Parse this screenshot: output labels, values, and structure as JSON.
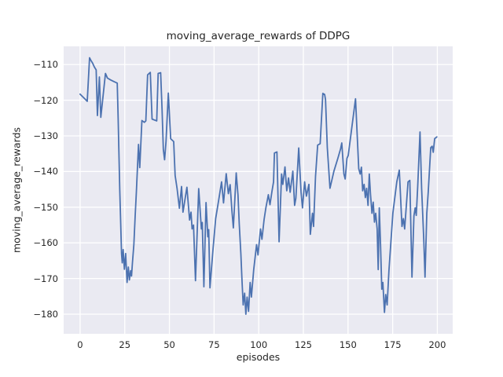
{
  "figure": {
    "title": "moving_average_rewards of DDPG"
  },
  "chart_data": {
    "type": "line",
    "title": "moving_average_rewards of DDPG",
    "xlabel": "episodes",
    "ylabel": "moving_average_rewards",
    "legend_position": "none",
    "grid": true,
    "style": "seaborn-darkgrid",
    "panel_bg": "#eaeaf2",
    "grid_color": "#ffffff",
    "line_color": "#4c72b0",
    "text_color": "#262626",
    "xlim": [
      -9.2,
      208.6
    ],
    "ylim": [
      -185.5,
      -104.9
    ],
    "x_ticks": [
      0,
      25,
      50,
      75,
      100,
      125,
      150,
      175,
      200
    ],
    "x_tick_labels": [
      "0",
      "25",
      "50",
      "75",
      "100",
      "125",
      "150",
      "175",
      "200"
    ],
    "y_ticks": [
      -110,
      -120,
      -130,
      -140,
      -150,
      -160,
      -170,
      -180
    ],
    "y_tick_labels": [
      "−110",
      "−120",
      "−130",
      "−140",
      "−150",
      "−160",
      "−170",
      "−180"
    ],
    "series": [
      {
        "name": "moving_average_rewards",
        "points": [
          [
            0,
            -118.3
          ],
          [
            1,
            -118.8
          ],
          [
            2,
            -119.3
          ],
          [
            3,
            -119.8
          ],
          [
            4,
            -120.3
          ],
          [
            5.3,
            -108.1
          ],
          [
            6,
            -108.8
          ],
          [
            7,
            -109.6
          ],
          [
            8,
            -110.7
          ],
          [
            9,
            -111.5
          ],
          [
            9.7,
            -124.3
          ],
          [
            10.8,
            -113.5
          ],
          [
            11.6,
            -124.8
          ],
          [
            14.2,
            -112.5
          ],
          [
            15.3,
            -113.8
          ],
          [
            17,
            -114.3
          ],
          [
            19,
            -114.8
          ],
          [
            20.8,
            -115.2
          ],
          [
            21.3,
            -125
          ],
          [
            22.2,
            -145
          ],
          [
            23.2,
            -163
          ],
          [
            23.6,
            -165.6
          ],
          [
            24.1,
            -161.9
          ],
          [
            24.8,
            -167.4
          ],
          [
            25.5,
            -163
          ],
          [
            26.3,
            -171.1
          ],
          [
            27,
            -166.8
          ],
          [
            27.6,
            -170.4
          ],
          [
            28.3,
            -167.8
          ],
          [
            28.8,
            -169.3
          ],
          [
            29.3,
            -165.6
          ],
          [
            30.1,
            -160.5
          ],
          [
            30.8,
            -152.8
          ],
          [
            31.5,
            -145.8
          ],
          [
            32.7,
            -132.4
          ],
          [
            33.4,
            -138.9
          ],
          [
            34.6,
            -125.7
          ],
          [
            36,
            -126.2
          ],
          [
            36.8,
            -125.8
          ],
          [
            37.8,
            -112.9
          ],
          [
            39.3,
            -112.2
          ],
          [
            40.3,
            -125.3
          ],
          [
            42.9,
            -125.8
          ],
          [
            43.7,
            -112.5
          ],
          [
            45.1,
            -112.3
          ],
          [
            45.9,
            -122.8
          ],
          [
            46.6,
            -133.8
          ],
          [
            47.3,
            -136.7
          ],
          [
            48.1,
            -131.6
          ],
          [
            49.4,
            -118
          ],
          [
            50.7,
            -130.8
          ],
          [
            52.4,
            -131.6
          ],
          [
            53.2,
            -141.1
          ],
          [
            54.3,
            -144.8
          ],
          [
            55.6,
            -150.3
          ],
          [
            56.8,
            -144.2
          ],
          [
            57.6,
            -151.4
          ],
          [
            59.8,
            -144.4
          ],
          [
            61.3,
            -153.6
          ],
          [
            62.1,
            -151.4
          ],
          [
            62.7,
            -156.1
          ],
          [
            63.5,
            -155
          ],
          [
            64.6,
            -170.6
          ],
          [
            66.4,
            -144.8
          ],
          [
            67.9,
            -156.1
          ],
          [
            68.4,
            -154.3
          ],
          [
            69.3,
            -172.3
          ],
          [
            70.5,
            -148.7
          ],
          [
            71.5,
            -158.3
          ],
          [
            72,
            -156.3
          ],
          [
            72.7,
            -172.6
          ],
          [
            74.5,
            -161.3
          ],
          [
            75.9,
            -153.2
          ],
          [
            77.5,
            -148.3
          ],
          [
            79.2,
            -142.9
          ],
          [
            80.3,
            -148.8
          ],
          [
            81.8,
            -140.6
          ],
          [
            83,
            -146.2
          ],
          [
            84,
            -143.7
          ],
          [
            85,
            -151
          ],
          [
            85.8,
            -155.8
          ],
          [
            87.4,
            -140.4
          ],
          [
            88.4,
            -146.6
          ],
          [
            89.1,
            -154.7
          ],
          [
            90,
            -163
          ],
          [
            90.6,
            -170.1
          ],
          [
            91.3,
            -177.4
          ],
          [
            92.1,
            -174.1
          ],
          [
            92.8,
            -180
          ],
          [
            93.5,
            -175.2
          ],
          [
            94.3,
            -179.2
          ],
          [
            95.2,
            -171.1
          ],
          [
            95.9,
            -175.2
          ],
          [
            97.2,
            -167.5
          ],
          [
            98.8,
            -160.5
          ],
          [
            99.6,
            -163.4
          ],
          [
            101,
            -156.1
          ],
          [
            101.8,
            -159
          ],
          [
            103,
            -153.5
          ],
          [
            104,
            -150.2
          ],
          [
            105.4,
            -146.5
          ],
          [
            106.3,
            -149.3
          ],
          [
            107.4,
            -145.6
          ],
          [
            108.3,
            -142.9
          ],
          [
            108.8,
            -134.8
          ],
          [
            110.2,
            -134.5
          ],
          [
            111.4,
            -159.7
          ],
          [
            112.8,
            -140.7
          ],
          [
            113.5,
            -143.6
          ],
          [
            114.7,
            -138.7
          ],
          [
            115.7,
            -145.4
          ],
          [
            116.7,
            -141.8
          ],
          [
            117.6,
            -145.8
          ],
          [
            119.1,
            -139.9
          ],
          [
            120.1,
            -149.5
          ],
          [
            120.8,
            -147.5
          ],
          [
            122.4,
            -133.4
          ],
          [
            123.7,
            -145.8
          ],
          [
            124.5,
            -150.2
          ],
          [
            125.7,
            -142.9
          ],
          [
            126.7,
            -146.9
          ],
          [
            128.1,
            -143.6
          ],
          [
            128.9,
            -157.6
          ],
          [
            130.1,
            -151.7
          ],
          [
            130.7,
            -155.4
          ],
          [
            131.8,
            -141.4
          ],
          [
            133,
            -132.6
          ],
          [
            134.4,
            -132.2
          ],
          [
            135.9,
            -118.1
          ],
          [
            136.9,
            -118.4
          ],
          [
            137.4,
            -119.8
          ],
          [
            138.4,
            -133.3
          ],
          [
            139.9,
            -144.7
          ],
          [
            142.1,
            -139.9
          ],
          [
            144.3,
            -136.3
          ],
          [
            145.8,
            -133.7
          ],
          [
            146.5,
            -132
          ],
          [
            147.7,
            -140.7
          ],
          [
            148.4,
            -142.1
          ],
          [
            149.4,
            -136.3
          ],
          [
            150.1,
            -135.5
          ],
          [
            154.2,
            -119.6
          ],
          [
            156,
            -139.2
          ],
          [
            156.8,
            -140.7
          ],
          [
            157.5,
            -138.8
          ],
          [
            158.2,
            -145.4
          ],
          [
            159,
            -143.6
          ],
          [
            159.7,
            -147.3
          ],
          [
            160.4,
            -144.7
          ],
          [
            161.2,
            -149.5
          ],
          [
            161.9,
            -140.7
          ],
          [
            162.6,
            -146.5
          ],
          [
            163.4,
            -151.7
          ],
          [
            164.1,
            -148.6
          ],
          [
            164.8,
            -154.2
          ],
          [
            165.5,
            -151.7
          ],
          [
            166.3,
            -156.1
          ],
          [
            166.9,
            -167.5
          ],
          [
            167.5,
            -150.2
          ],
          [
            168.2,
            -160.5
          ],
          [
            168.9,
            -173
          ],
          [
            169.5,
            -171.1
          ],
          [
            170.4,
            -179.5
          ],
          [
            171.1,
            -174.5
          ],
          [
            171.9,
            -177.4
          ],
          [
            172.9,
            -167.8
          ],
          [
            175.1,
            -151.7
          ],
          [
            177.3,
            -142.9
          ],
          [
            178.7,
            -139.6
          ],
          [
            180.2,
            -155.4
          ],
          [
            181,
            -153.2
          ],
          [
            181.7,
            -156.1
          ],
          [
            183.6,
            -142.9
          ],
          [
            184.6,
            -142.5
          ],
          [
            185.8,
            -169.6
          ],
          [
            186.9,
            -152.4
          ],
          [
            187.6,
            -150.2
          ],
          [
            188.2,
            -152.3
          ],
          [
            189,
            -144.3
          ],
          [
            190.3,
            -128.9
          ],
          [
            191.2,
            -144.7
          ],
          [
            192.4,
            -159
          ],
          [
            193.1,
            -169.6
          ],
          [
            194.1,
            -151.7
          ],
          [
            194.9,
            -145.8
          ],
          [
            196.3,
            -133.3
          ],
          [
            197.1,
            -132.9
          ],
          [
            197.7,
            -134.6
          ],
          [
            198.5,
            -130.8
          ],
          [
            199.7,
            -130.3
          ]
        ]
      }
    ]
  }
}
